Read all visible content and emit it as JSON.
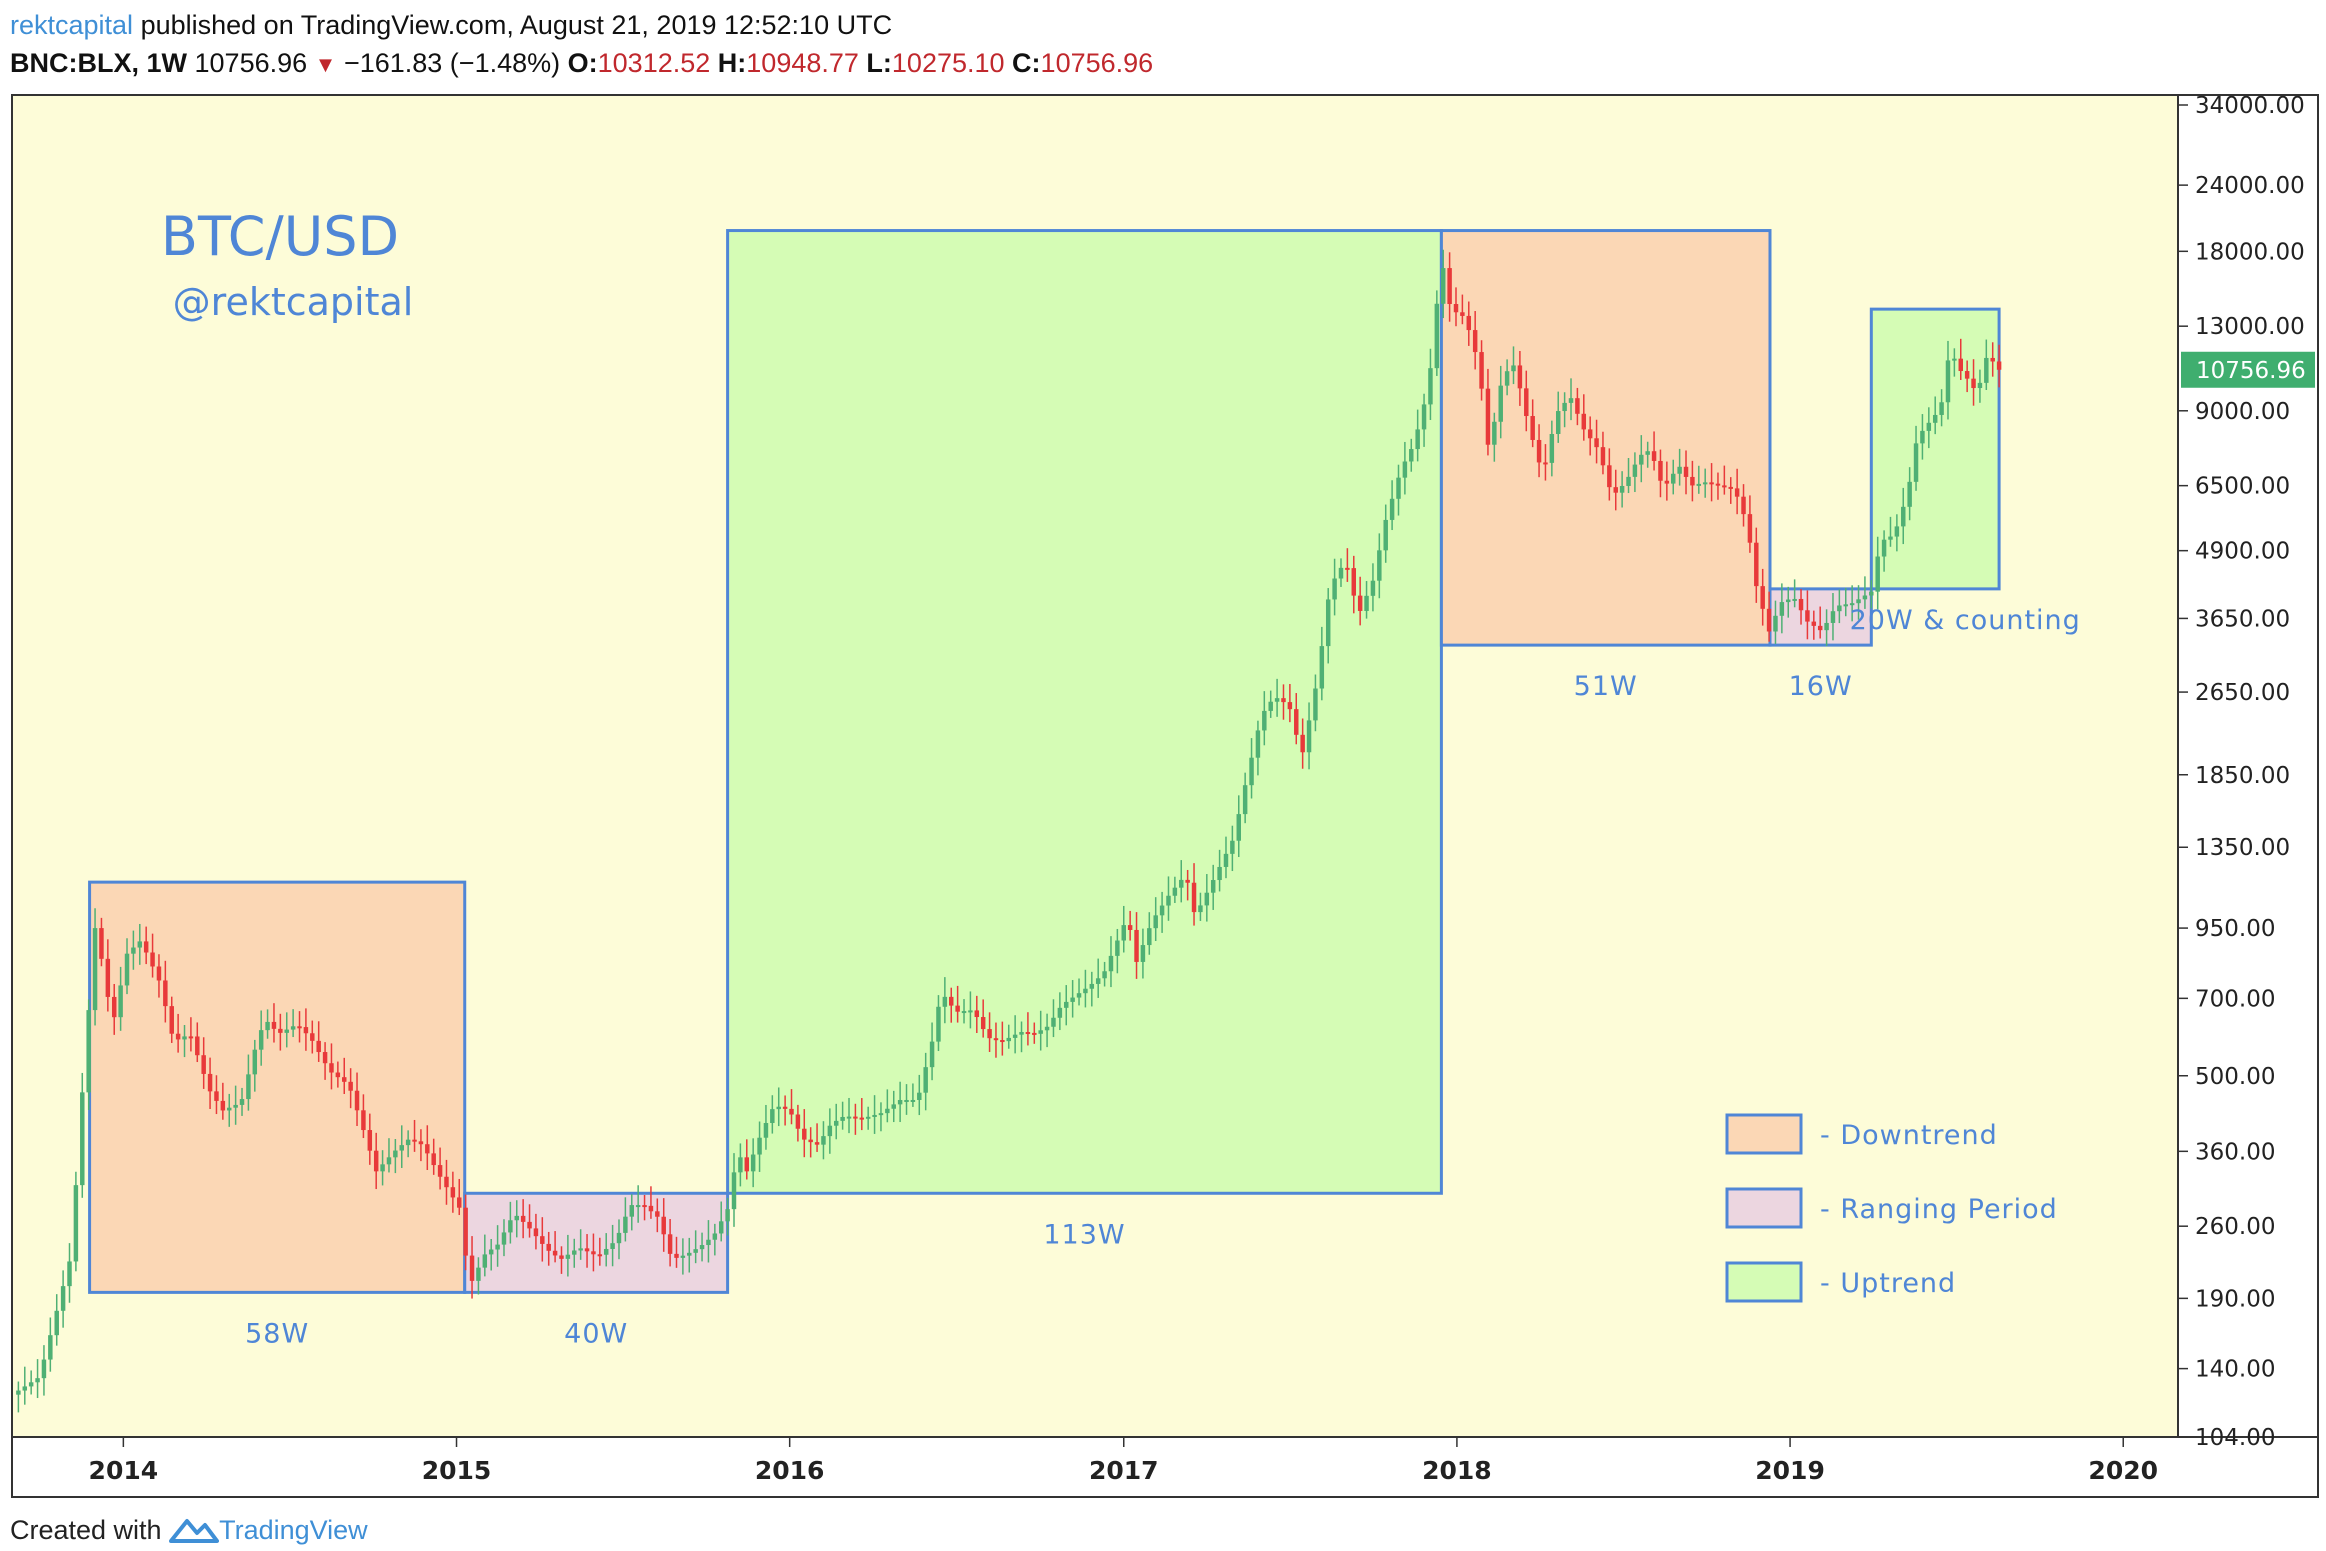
{
  "header": {
    "author": "rektcapital",
    "published": "published on TradingView.com, August 21, 2019 12:52:10 UTC",
    "symbol": "BNC:BLX, 1W",
    "last": "10756.96",
    "change": "−161.83 (−1.48%)",
    "o_label": "O:",
    "o_value": "10312.52",
    "h_label": "H:",
    "h_value": "10948.77",
    "l_label": "L:",
    "l_value": "10275.10",
    "c_label": "C:",
    "c_value": "10756.96"
  },
  "footer": {
    "created_with": "Created with",
    "brand": "TradingView"
  },
  "colors": {
    "background": "#fdfcd8",
    "downtrend_fill": "#fbd7b5",
    "ranging_fill": "#ecd6e0",
    "uptrend_fill": "#d5fcb5",
    "box_stroke": "#4f86d6",
    "label_blue": "#4f86d6",
    "candle_up": "#4fb074",
    "candle_down": "#e8393a",
    "price_badge": "#3fae6f"
  },
  "chart_data": {
    "type": "candlestick",
    "title": "BTC/USD",
    "subtitle": "@rektcapital",
    "y_scale": "log",
    "ylim": [
      104,
      34000
    ],
    "y_ticks": [
      "34000.00",
      "24000.00",
      "18000.00",
      "13000.00",
      "9000.00",
      "6500.00",
      "4900.00",
      "3650.00",
      "2650.00",
      "1850.00",
      "1350.00",
      "950.00",
      "700.00",
      "500.00",
      "360.00",
      "260.00",
      "190.00",
      "140.00",
      "104.00"
    ],
    "x_ticks": [
      "2014",
      "2015",
      "2016",
      "2017",
      "2018",
      "2019",
      "2020"
    ],
    "xlim": [
      "2013-09-01",
      "2020-03-01"
    ],
    "current_price": "10756.96",
    "legend_position": "bottom-right",
    "legend": [
      {
        "type": "downtrend",
        "label": "- Downtrend"
      },
      {
        "type": "ranging",
        "label": "- Ranging Period"
      },
      {
        "type": "uptrend",
        "label": "- Uptrend"
      }
    ],
    "periods": [
      {
        "type": "downtrend",
        "start": "2013-11-25",
        "end": "2015-01-10",
        "low": 195,
        "high": 1160,
        "label": "58W"
      },
      {
        "type": "ranging",
        "start": "2015-01-10",
        "end": "2015-10-25",
        "low": 195,
        "high": 300,
        "label": "40W"
      },
      {
        "type": "uptrend",
        "start": "2015-10-25",
        "end": "2017-12-15",
        "low": 300,
        "high": 19700,
        "label": "113W"
      },
      {
        "type": "downtrend",
        "start": "2017-12-15",
        "end": "2018-12-10",
        "low": 3250,
        "high": 19700,
        "label": "51W"
      },
      {
        "type": "ranging",
        "start": "2018-12-10",
        "end": "2019-03-31",
        "low": 3250,
        "high": 4150,
        "label": "16W"
      },
      {
        "type": "uptrend",
        "start": "2019-03-31",
        "end": "2019-08-18",
        "low": 4150,
        "high": 14000,
        "label": "20W & counting"
      }
    ],
    "price_path": [
      [
        "2013-09-01",
        125
      ],
      [
        "2013-10-01",
        135
      ],
      [
        "2013-10-20",
        180
      ],
      [
        "2013-11-05",
        230
      ],
      [
        "2013-11-15",
        420
      ],
      [
        "2013-11-25",
        700
      ],
      [
        "2013-12-01",
        950
      ],
      [
        "2013-12-10",
        800
      ],
      [
        "2013-12-20",
        620
      ],
      [
        "2014-01-05",
        850
      ],
      [
        "2014-01-20",
        900
      ],
      [
        "2014-02-10",
        750
      ],
      [
        "2014-02-25",
        580
      ],
      [
        "2014-03-15",
        600
      ],
      [
        "2014-04-05",
        470
      ],
      [
        "2014-04-20",
        430
      ],
      [
        "2014-05-10",
        445
      ],
      [
        "2014-05-25",
        560
      ],
      [
        "2014-06-05",
        640
      ],
      [
        "2014-06-20",
        600
      ],
      [
        "2014-07-10",
        625
      ],
      [
        "2014-07-25",
        590
      ],
      [
        "2014-08-15",
        510
      ],
      [
        "2014-09-05",
        480
      ],
      [
        "2014-09-20",
        400
      ],
      [
        "2014-10-05",
        330
      ],
      [
        "2014-10-25",
        360
      ],
      [
        "2014-11-10",
        380
      ],
      [
        "2014-11-25",
        370
      ],
      [
        "2014-12-15",
        320
      ],
      [
        "2015-01-05",
        280
      ],
      [
        "2015-01-15",
        200
      ],
      [
        "2015-02-01",
        230
      ],
      [
        "2015-02-15",
        240
      ],
      [
        "2015-03-05",
        275
      ],
      [
        "2015-03-20",
        260
      ],
      [
        "2015-04-10",
        235
      ],
      [
        "2015-04-25",
        225
      ],
      [
        "2015-05-15",
        237
      ],
      [
        "2015-06-05",
        228
      ],
      [
        "2015-06-25",
        245
      ],
      [
        "2015-07-10",
        285
      ],
      [
        "2015-07-25",
        285
      ],
      [
        "2015-08-10",
        270
      ],
      [
        "2015-08-25",
        225
      ],
      [
        "2015-09-10",
        230
      ],
      [
        "2015-09-25",
        238
      ],
      [
        "2015-10-10",
        250
      ],
      [
        "2015-10-25",
        280
      ],
      [
        "2015-11-05",
        360
      ],
      [
        "2015-11-15",
        330
      ],
      [
        "2015-12-01",
        390
      ],
      [
        "2015-12-15",
        440
      ],
      [
        "2016-01-01",
        430
      ],
      [
        "2016-01-15",
        380
      ],
      [
        "2016-02-01",
        370
      ],
      [
        "2016-02-15",
        405
      ],
      [
        "2016-03-01",
        420
      ],
      [
        "2016-03-20",
        415
      ],
      [
        "2016-04-10",
        425
      ],
      [
        "2016-05-01",
        450
      ],
      [
        "2016-05-20",
        450
      ],
      [
        "2016-06-05",
        580
      ],
      [
        "2016-06-15",
        720
      ],
      [
        "2016-07-01",
        660
      ],
      [
        "2016-07-20",
        665
      ],
      [
        "2016-08-05",
        590
      ],
      [
        "2016-08-20",
        580
      ],
      [
        "2016-09-10",
        605
      ],
      [
        "2016-09-25",
        600
      ],
      [
        "2016-10-10",
        620
      ],
      [
        "2016-10-25",
        680
      ],
      [
        "2016-11-10",
        710
      ],
      [
        "2016-11-25",
        740
      ],
      [
        "2016-12-10",
        780
      ],
      [
        "2016-12-25",
        900
      ],
      [
        "2017-01-05",
        1000
      ],
      [
        "2017-01-15",
        820
      ],
      [
        "2017-02-01",
        980
      ],
      [
        "2017-02-20",
        1100
      ],
      [
        "2017-03-10",
        1200
      ],
      [
        "2017-03-20",
        1000
      ],
      [
        "2017-04-10",
        1180
      ],
      [
        "2017-05-01",
        1400
      ],
      [
        "2017-05-15",
        1800
      ],
      [
        "2017-06-01",
        2400
      ],
      [
        "2017-06-15",
        2600
      ],
      [
        "2017-07-01",
        2500
      ],
      [
        "2017-07-15",
        2000
      ],
      [
        "2017-08-01",
        2800
      ],
      [
        "2017-08-15",
        4200
      ],
      [
        "2017-09-01",
        4700
      ],
      [
        "2017-09-15",
        3700
      ],
      [
        "2017-10-01",
        4300
      ],
      [
        "2017-10-15",
        5600
      ],
      [
        "2017-11-01",
        7000
      ],
      [
        "2017-11-15",
        7800
      ],
      [
        "2017-12-01",
        10000
      ],
      [
        "2017-12-15",
        17500
      ],
      [
        "2017-12-25",
        14000
      ],
      [
        "2018-01-10",
        13500
      ],
      [
        "2018-01-25",
        11000
      ],
      [
        "2018-02-05",
        7500
      ],
      [
        "2018-02-20",
        10500
      ],
      [
        "2018-03-05",
        11000
      ],
      [
        "2018-03-20",
        8500
      ],
      [
        "2018-04-05",
        6800
      ],
      [
        "2018-04-20",
        8900
      ],
      [
        "2018-05-05",
        9600
      ],
      [
        "2018-05-20",
        8300
      ],
      [
        "2018-06-05",
        7600
      ],
      [
        "2018-06-20",
        6200
      ],
      [
        "2018-07-05",
        6600
      ],
      [
        "2018-07-20",
        7400
      ],
      [
        "2018-08-01",
        7600
      ],
      [
        "2018-08-15",
        6400
      ],
      [
        "2018-09-01",
        7100
      ],
      [
        "2018-09-15",
        6500
      ],
      [
        "2018-10-01",
        6600
      ],
      [
        "2018-10-15",
        6500
      ],
      [
        "2018-11-01",
        6400
      ],
      [
        "2018-11-15",
        5500
      ],
      [
        "2018-11-25",
        4200
      ],
      [
        "2018-12-10",
        3400
      ],
      [
        "2018-12-20",
        3900
      ],
      [
        "2019-01-05",
        4000
      ],
      [
        "2019-01-20",
        3600
      ],
      [
        "2019-02-05",
        3450
      ],
      [
        "2019-02-20",
        3850
      ],
      [
        "2019-03-10",
        3900
      ],
      [
        "2019-03-31",
        4100
      ],
      [
        "2019-04-10",
        5100
      ],
      [
        "2019-04-25",
        5250
      ],
      [
        "2019-05-10",
        6300
      ],
      [
        "2019-05-20",
        8000
      ],
      [
        "2019-06-01",
        8500
      ],
      [
        "2019-06-15",
        9100
      ],
      [
        "2019-06-25",
        11800
      ],
      [
        "2019-07-05",
        10800
      ],
      [
        "2019-07-15",
        10300
      ],
      [
        "2019-07-25",
        9700
      ],
      [
        "2019-08-05",
        11500
      ],
      [
        "2019-08-18",
        10756.96
      ]
    ]
  }
}
